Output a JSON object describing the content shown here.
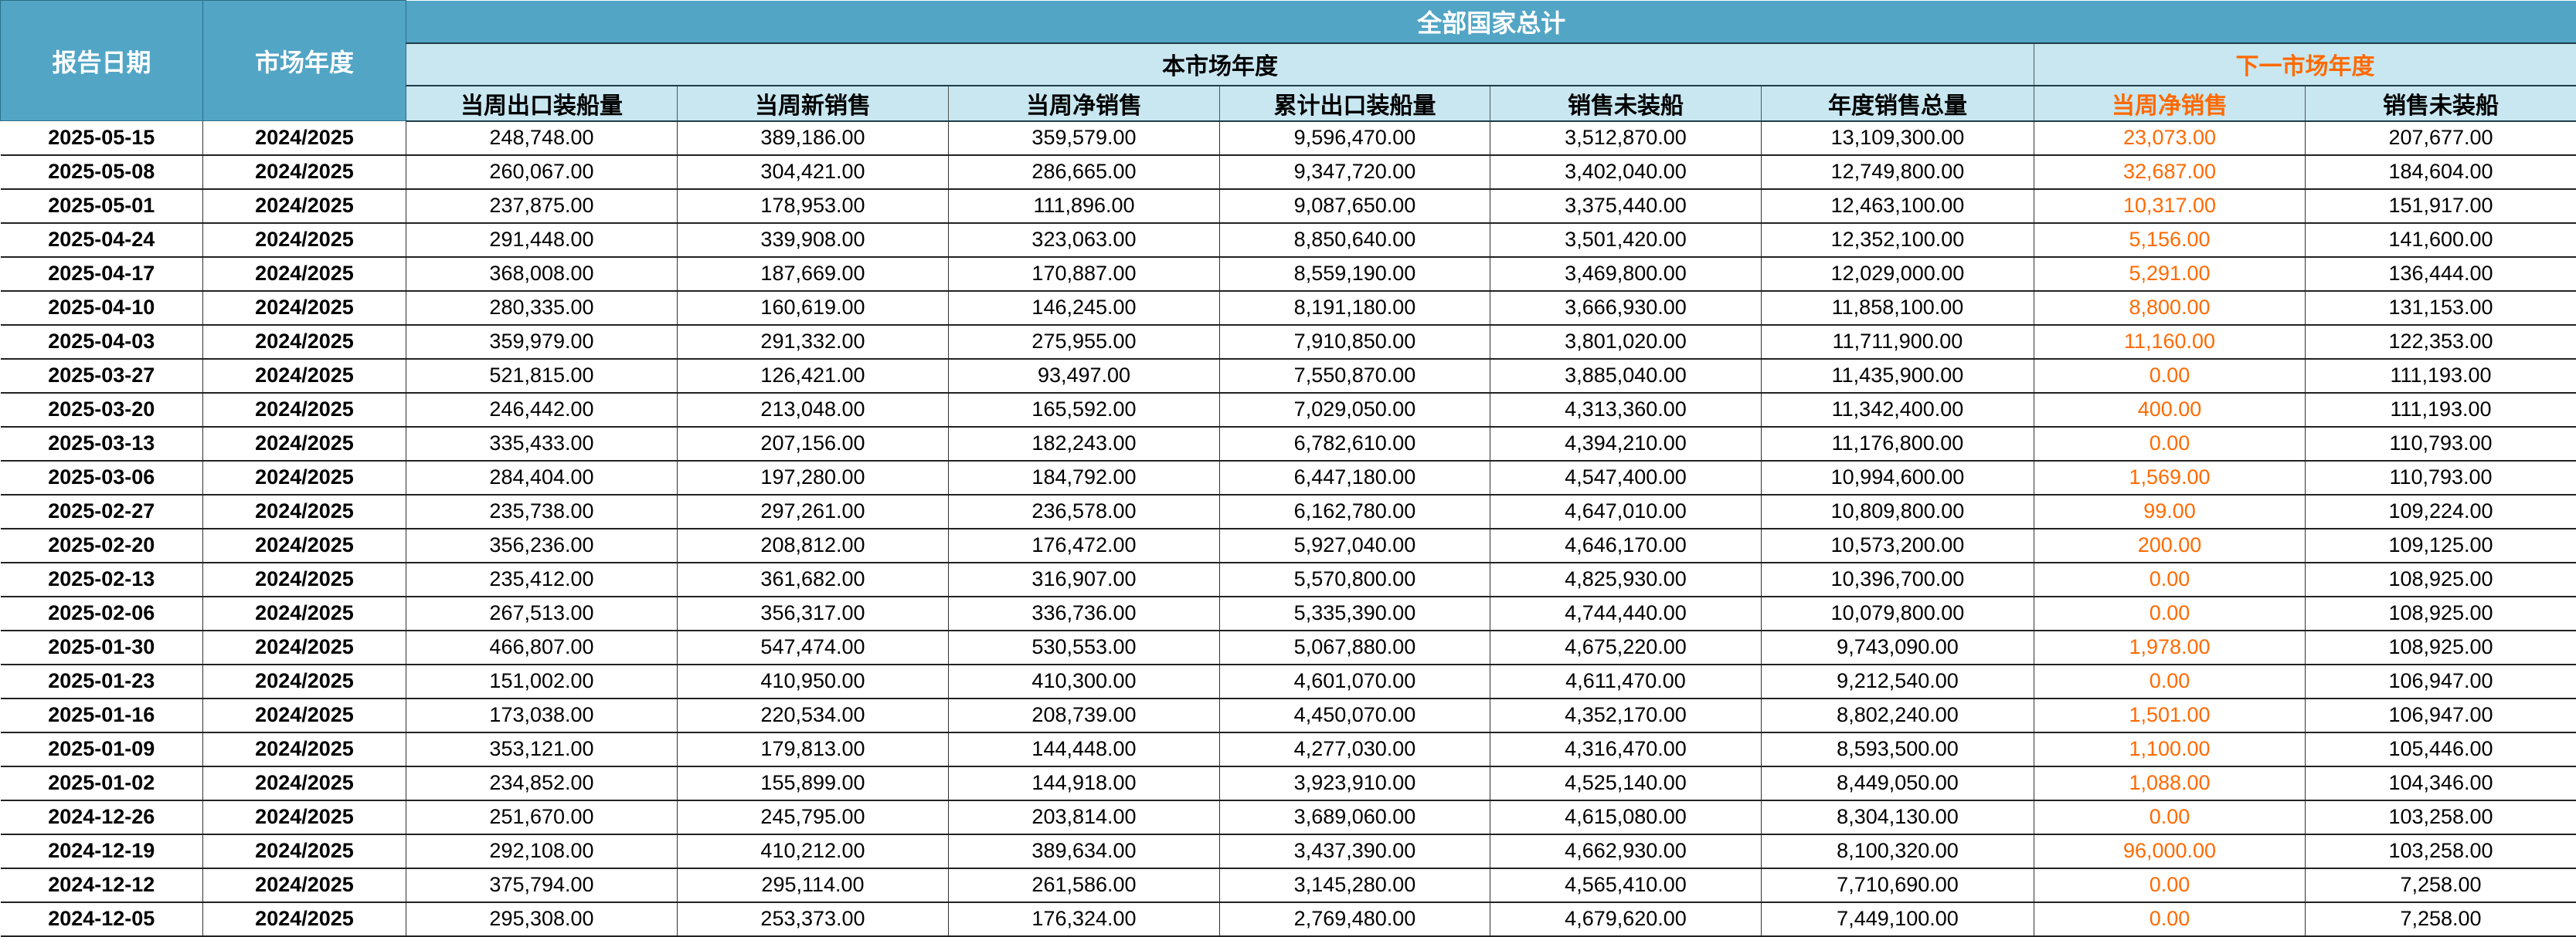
{
  "header": {
    "title": "全部国家总计",
    "col_date": "报告日期",
    "col_year": "市场年度",
    "group_current": "本市场年度",
    "group_next": "下一市场年度",
    "sub_columns": [
      "当周出口装船量",
      "当周新销售",
      "当周净销售",
      "累计出口装船量",
      "销售未装船",
      "年度销售总量",
      "当周净销售",
      "销售未装船"
    ]
  },
  "colors": {
    "header_dark": "#52a5c5",
    "header_light": "#c8e7f1",
    "accent_orange": "#ff6a00"
  },
  "rows": [
    [
      "2025-05-15",
      "2024/2025",
      "248,748.00",
      "389,186.00",
      "359,579.00",
      "9,596,470.00",
      "3,512,870.00",
      "13,109,300.00",
      "23,073.00",
      "207,677.00"
    ],
    [
      "2025-05-08",
      "2024/2025",
      "260,067.00",
      "304,421.00",
      "286,665.00",
      "9,347,720.00",
      "3,402,040.00",
      "12,749,800.00",
      "32,687.00",
      "184,604.00"
    ],
    [
      "2025-05-01",
      "2024/2025",
      "237,875.00",
      "178,953.00",
      "111,896.00",
      "9,087,650.00",
      "3,375,440.00",
      "12,463,100.00",
      "10,317.00",
      "151,917.00"
    ],
    [
      "2025-04-24",
      "2024/2025",
      "291,448.00",
      "339,908.00",
      "323,063.00",
      "8,850,640.00",
      "3,501,420.00",
      "12,352,100.00",
      "5,156.00",
      "141,600.00"
    ],
    [
      "2025-04-17",
      "2024/2025",
      "368,008.00",
      "187,669.00",
      "170,887.00",
      "8,559,190.00",
      "3,469,800.00",
      "12,029,000.00",
      "5,291.00",
      "136,444.00"
    ],
    [
      "2025-04-10",
      "2024/2025",
      "280,335.00",
      "160,619.00",
      "146,245.00",
      "8,191,180.00",
      "3,666,930.00",
      "11,858,100.00",
      "8,800.00",
      "131,153.00"
    ],
    [
      "2025-04-03",
      "2024/2025",
      "359,979.00",
      "291,332.00",
      "275,955.00",
      "7,910,850.00",
      "3,801,020.00",
      "11,711,900.00",
      "11,160.00",
      "122,353.00"
    ],
    [
      "2025-03-27",
      "2024/2025",
      "521,815.00",
      "126,421.00",
      "93,497.00",
      "7,550,870.00",
      "3,885,040.00",
      "11,435,900.00",
      "0.00",
      "111,193.00"
    ],
    [
      "2025-03-20",
      "2024/2025",
      "246,442.00",
      "213,048.00",
      "165,592.00",
      "7,029,050.00",
      "4,313,360.00",
      "11,342,400.00",
      "400.00",
      "111,193.00"
    ],
    [
      "2025-03-13",
      "2024/2025",
      "335,433.00",
      "207,156.00",
      "182,243.00",
      "6,782,610.00",
      "4,394,210.00",
      "11,176,800.00",
      "0.00",
      "110,793.00"
    ],
    [
      "2025-03-06",
      "2024/2025",
      "284,404.00",
      "197,280.00",
      "184,792.00",
      "6,447,180.00",
      "4,547,400.00",
      "10,994,600.00",
      "1,569.00",
      "110,793.00"
    ],
    [
      "2025-02-27",
      "2024/2025",
      "235,738.00",
      "297,261.00",
      "236,578.00",
      "6,162,780.00",
      "4,647,010.00",
      "10,809,800.00",
      "99.00",
      "109,224.00"
    ],
    [
      "2025-02-20",
      "2024/2025",
      "356,236.00",
      "208,812.00",
      "176,472.00",
      "5,927,040.00",
      "4,646,170.00",
      "10,573,200.00",
      "200.00",
      "109,125.00"
    ],
    [
      "2025-02-13",
      "2024/2025",
      "235,412.00",
      "361,682.00",
      "316,907.00",
      "5,570,800.00",
      "4,825,930.00",
      "10,396,700.00",
      "0.00",
      "108,925.00"
    ],
    [
      "2025-02-06",
      "2024/2025",
      "267,513.00",
      "356,317.00",
      "336,736.00",
      "5,335,390.00",
      "4,744,440.00",
      "10,079,800.00",
      "0.00",
      "108,925.00"
    ],
    [
      "2025-01-30",
      "2024/2025",
      "466,807.00",
      "547,474.00",
      "530,553.00",
      "5,067,880.00",
      "4,675,220.00",
      "9,743,090.00",
      "1,978.00",
      "108,925.00"
    ],
    [
      "2025-01-23",
      "2024/2025",
      "151,002.00",
      "410,950.00",
      "410,300.00",
      "4,601,070.00",
      "4,611,470.00",
      "9,212,540.00",
      "0.00",
      "106,947.00"
    ],
    [
      "2025-01-16",
      "2024/2025",
      "173,038.00",
      "220,534.00",
      "208,739.00",
      "4,450,070.00",
      "4,352,170.00",
      "8,802,240.00",
      "1,501.00",
      "106,947.00"
    ],
    [
      "2025-01-09",
      "2024/2025",
      "353,121.00",
      "179,813.00",
      "144,448.00",
      "4,277,030.00",
      "4,316,470.00",
      "8,593,500.00",
      "1,100.00",
      "105,446.00"
    ],
    [
      "2025-01-02",
      "2024/2025",
      "234,852.00",
      "155,899.00",
      "144,918.00",
      "3,923,910.00",
      "4,525,140.00",
      "8,449,050.00",
      "1,088.00",
      "104,346.00"
    ],
    [
      "2024-12-26",
      "2024/2025",
      "251,670.00",
      "245,795.00",
      "203,814.00",
      "3,689,060.00",
      "4,615,080.00",
      "8,304,130.00",
      "0.00",
      "103,258.00"
    ],
    [
      "2024-12-19",
      "2024/2025",
      "292,108.00",
      "410,212.00",
      "389,634.00",
      "3,437,390.00",
      "4,662,930.00",
      "8,100,320.00",
      "96,000.00",
      "103,258.00"
    ],
    [
      "2024-12-12",
      "2024/2025",
      "375,794.00",
      "295,114.00",
      "261,586.00",
      "3,145,280.00",
      "4,565,410.00",
      "7,710,690.00",
      "0.00",
      "7,258.00"
    ],
    [
      "2024-12-05",
      "2024/2025",
      "295,308.00",
      "253,373.00",
      "176,324.00",
      "2,769,480.00",
      "4,679,620.00",
      "7,449,100.00",
      "0.00",
      "7,258.00"
    ]
  ]
}
